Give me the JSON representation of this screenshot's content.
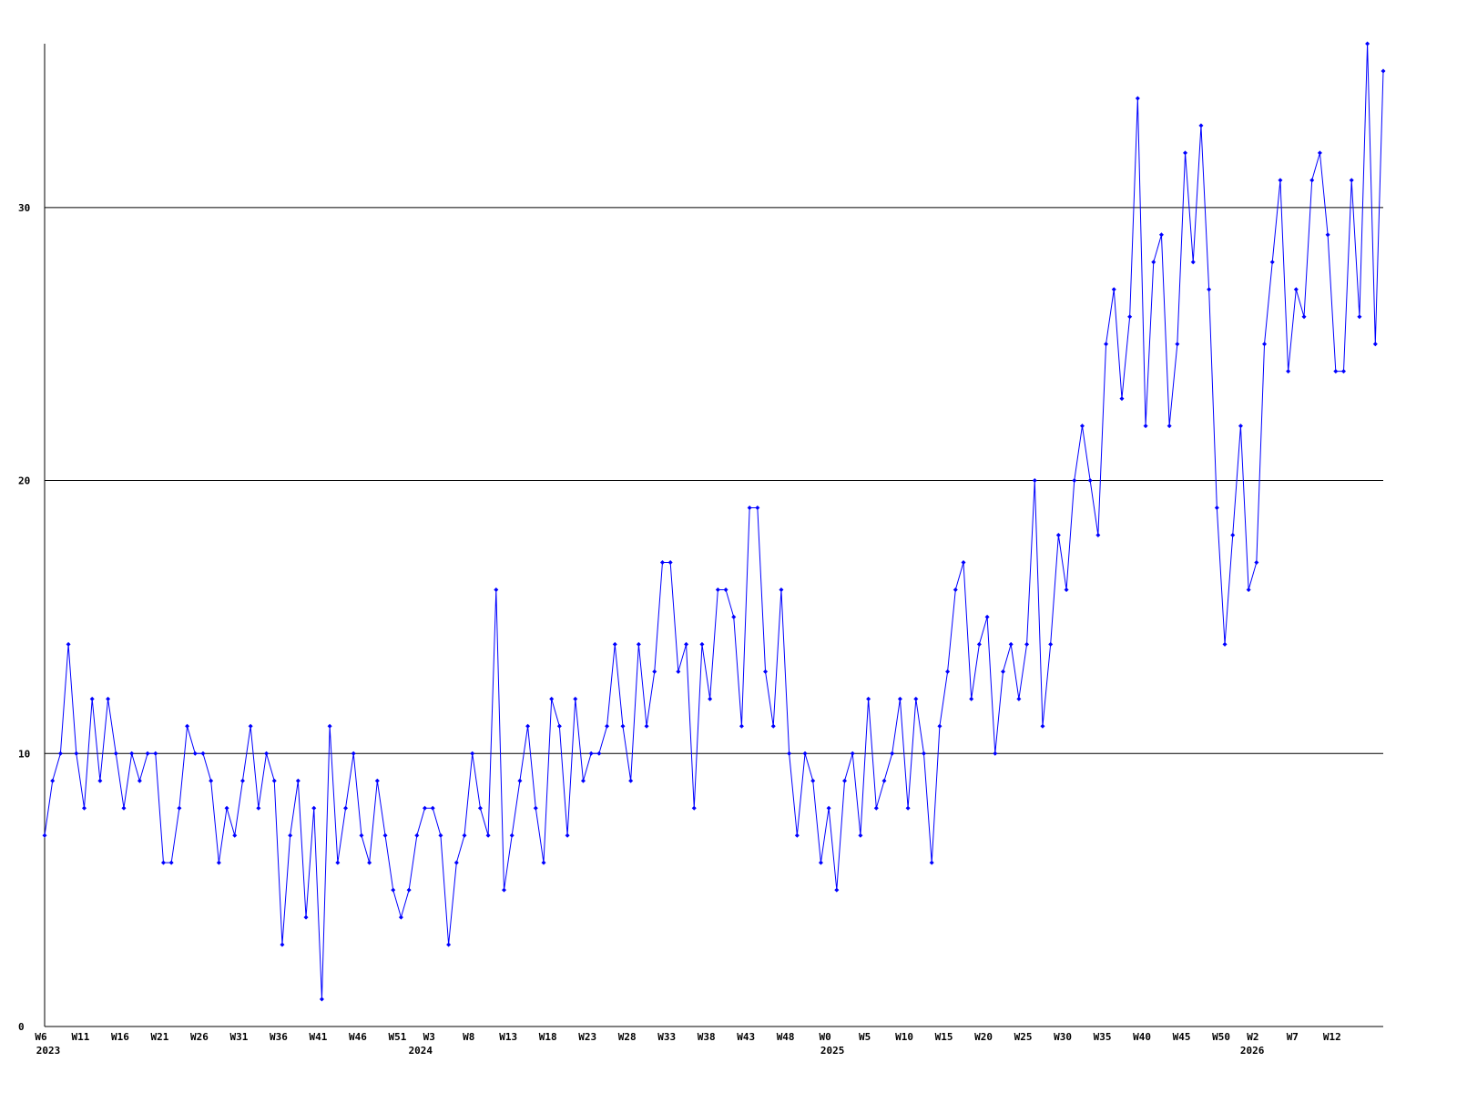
{
  "chart_data": {
    "type": "line",
    "categories": [
      "W6",
      null,
      null,
      null,
      null,
      "W11",
      null,
      null,
      null,
      null,
      "W16",
      null,
      null,
      null,
      null,
      "W21",
      null,
      null,
      null,
      null,
      "W26",
      null,
      null,
      null,
      null,
      "W31",
      null,
      null,
      null,
      null,
      "W36",
      null,
      null,
      null,
      null,
      "W41",
      null,
      null,
      null,
      null,
      "W46",
      null,
      null,
      null,
      null,
      "W51",
      null,
      null,
      null,
      "W3",
      null,
      null,
      null,
      null,
      "W8",
      null,
      null,
      null,
      null,
      "W13",
      null,
      null,
      null,
      null,
      "W18",
      null,
      null,
      null,
      null,
      "W23",
      null,
      null,
      null,
      null,
      "W28",
      null,
      null,
      null,
      null,
      "W33",
      null,
      null,
      null,
      null,
      "W38",
      null,
      null,
      null,
      null,
      "W43",
      null,
      null,
      null,
      null,
      "W48",
      null,
      null,
      null,
      null,
      "W0",
      null,
      null,
      null,
      null,
      "W5",
      null,
      null,
      null,
      null,
      "W10",
      null,
      null,
      null,
      null,
      "W15",
      null,
      null,
      null,
      null,
      "W20",
      null,
      null,
      null,
      null,
      "W25",
      null,
      null,
      null,
      null,
      "W30",
      null,
      null,
      null,
      null,
      "W35",
      null,
      null,
      null,
      null,
      "W40",
      null,
      null,
      null,
      null,
      "W45",
      null,
      null,
      null,
      null,
      "W50",
      null,
      null,
      null,
      "W2",
      null,
      null,
      null,
      null,
      "W7",
      null,
      null,
      null,
      null,
      "W12",
      null,
      null,
      null,
      null,
      null,
      null
    ],
    "year_labels": [
      {
        "category": 0,
        "label": "2023"
      },
      {
        "category": 47,
        "label": "2024"
      },
      {
        "category": 99,
        "label": "2025"
      },
      {
        "category": 152,
        "label": "2026"
      }
    ],
    "series": [
      {
        "color": "#0000ff",
        "values": [
          7,
          9,
          10,
          14,
          10,
          8,
          12,
          9,
          12,
          10,
          8,
          10,
          9,
          10,
          10,
          6,
          6,
          8,
          11,
          10,
          10,
          9,
          6,
          8,
          7,
          9,
          11,
          8,
          10,
          9,
          3,
          7,
          9,
          4,
          8,
          1,
          11,
          6,
          8,
          10,
          7,
          6,
          9,
          7,
          5,
          4,
          5,
          7,
          8,
          8,
          7,
          3,
          6,
          7,
          10,
          8,
          7,
          16,
          5,
          7,
          9,
          11,
          8,
          6,
          12,
          11,
          7,
          12,
          9,
          10,
          10,
          11,
          14,
          11,
          9,
          14,
          11,
          13,
          17,
          17,
          13,
          14,
          8,
          14,
          12,
          16,
          16,
          15,
          11,
          19,
          19,
          13,
          11,
          16,
          10,
          7,
          10,
          9,
          6,
          8,
          5,
          9,
          10,
          7,
          12,
          8,
          9,
          10,
          12,
          8,
          12,
          10,
          6,
          11,
          13,
          16,
          17,
          12,
          14,
          15,
          10,
          13,
          14,
          12,
          14,
          20,
          11,
          14,
          18,
          16,
          20,
          22,
          20,
          18,
          25,
          27,
          23,
          26,
          34,
          22,
          28,
          29,
          22,
          25,
          32,
          28,
          33,
          27,
          19,
          14,
          18,
          22,
          16,
          17,
          25,
          28,
          31,
          24,
          27,
          26,
          31,
          32,
          29,
          24,
          24,
          31,
          26,
          36,
          25,
          35
        ]
      }
    ],
    "ylim": [
      0,
      36
    ],
    "yticks": [
      0,
      10,
      20,
      30
    ],
    "grid": true
  }
}
